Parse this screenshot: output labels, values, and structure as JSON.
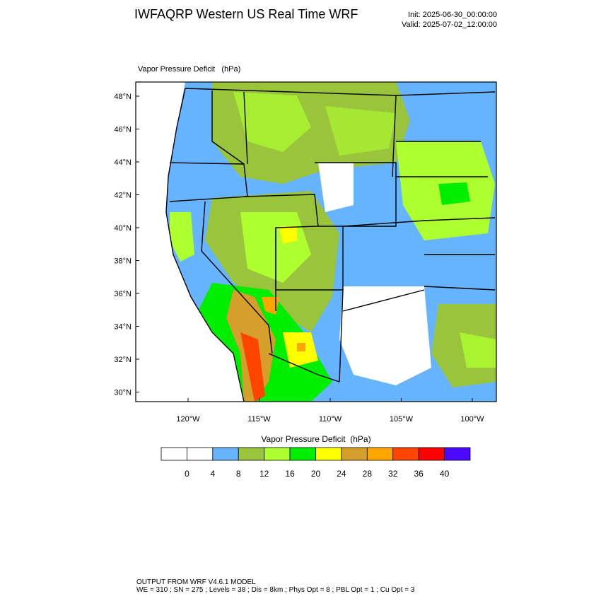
{
  "header": {
    "title": "IWFAQRP Western US Real Time WRF",
    "init": "Init: 2025-06-30_00:00:00",
    "valid": "Valid: 2025-07-02_12:00:00"
  },
  "map": {
    "field_label": "Vapor Pressure Deficit   (hPa)",
    "lat_labels": [
      "48°N",
      "46°N",
      "44°N",
      "42°N",
      "40°N",
      "38°N",
      "36°N",
      "34°N",
      "32°N",
      "30°N"
    ],
    "lon_labels": [
      "120°W",
      "115°W",
      "110°W",
      "105°W",
      "100°W"
    ]
  },
  "colorbar": {
    "title": "Vapor Pressure Deficit  (hPa)",
    "colors": [
      "#ffffff",
      "#ffffff",
      "#66b3ff",
      "#99c43b",
      "#adff2f",
      "#00ee00",
      "#ffff00",
      "#d4a02b",
      "#ffa500",
      "#ff4500",
      "#ff0000",
      "#4b0aff"
    ],
    "ticks": [
      0,
      4,
      8,
      12,
      16,
      20,
      24,
      28,
      32,
      36,
      40
    ]
  },
  "footer": {
    "line1": "OUTPUT FROM WRF V4.6.1 MODEL",
    "line2": "WE = 310 ; SN = 275 ; Levels = 38 ; Dis = 8km ; Phys Opt = 8 ; PBL Opt = 1 ; Cu Opt = 3"
  }
}
